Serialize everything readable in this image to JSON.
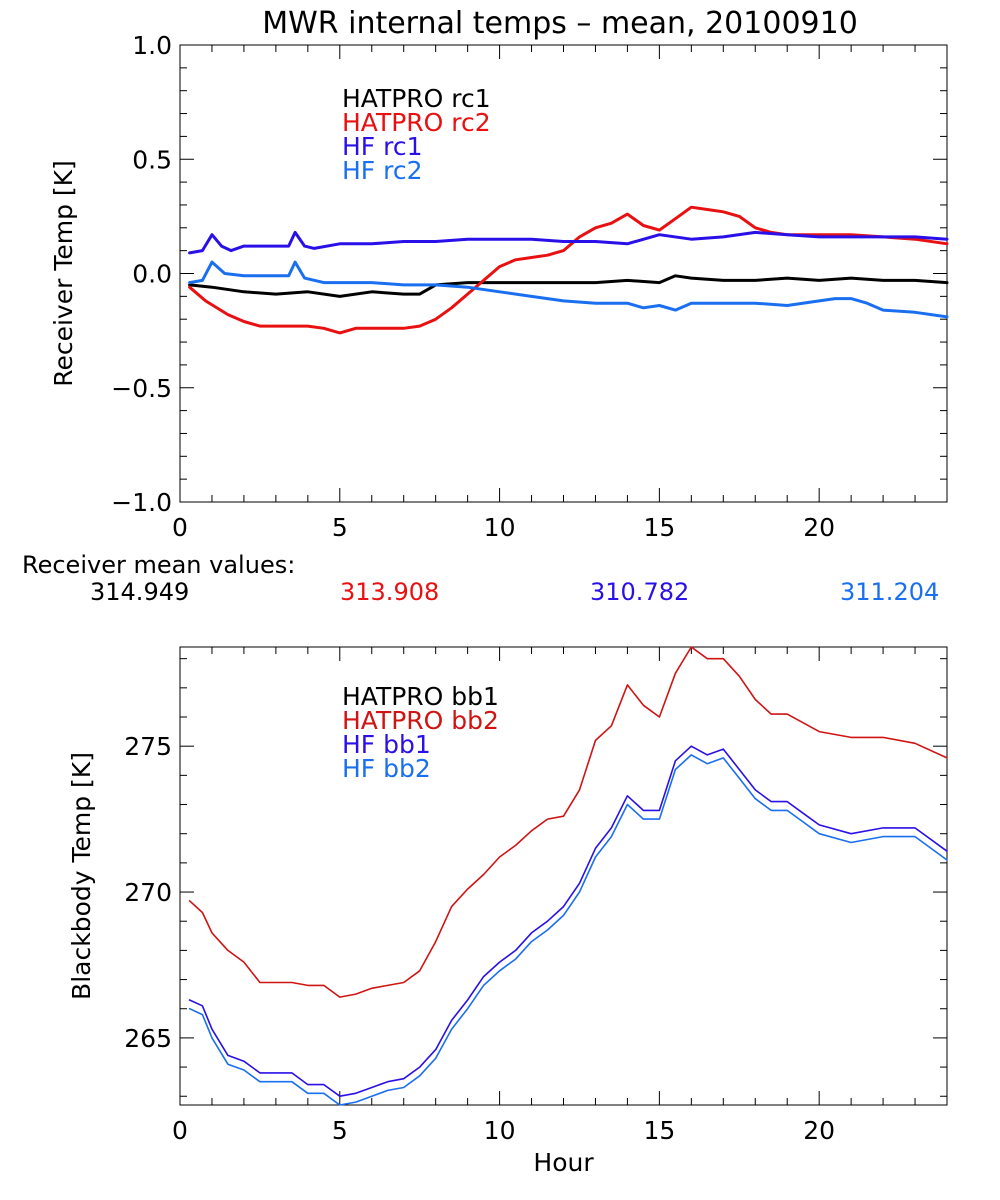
{
  "title": "MWR internal temps – mean, 20100910",
  "colors": {
    "black": "#000000",
    "red": "#e81010",
    "darkred": "#d01414",
    "blue": "#2a10e8",
    "lightblue": "#1a6ff0"
  },
  "receiver_means": {
    "label": "Receiver mean values:",
    "values": [
      {
        "text": "314.949",
        "color": "#000000"
      },
      {
        "text": "313.908",
        "color": "#e81010"
      },
      {
        "text": "310.782",
        "color": "#2a10e8"
      },
      {
        "text": "311.204",
        "color": "#1a6ff0"
      }
    ]
  },
  "chart_data": [
    {
      "type": "line",
      "title": "MWR internal temps – mean, 20100910",
      "xlabel": "",
      "ylabel": "Receiver Temp [K]",
      "xlim": [
        0,
        24
      ],
      "ylim": [
        -1.0,
        1.0
      ],
      "x_ticks": [
        0,
        5,
        10,
        15,
        20
      ],
      "y_ticks": [
        -1.0,
        -0.5,
        0.0,
        0.5,
        1.0
      ],
      "y_tick_labels": [
        "−1.0",
        "−0.5",
        "0.0",
        "0.5",
        "1.0"
      ],
      "grid": false,
      "legend_position": "top-left",
      "series": [
        {
          "name": "HATPRO rc1",
          "color": "#000000",
          "x": [
            0.3,
            1.0,
            2.0,
            3.0,
            4.0,
            5.0,
            6.0,
            7.0,
            7.5,
            8.0,
            9.0,
            10.0,
            11.0,
            12.0,
            13.0,
            14.0,
            15.0,
            15.5,
            16.0,
            17.0,
            18.0,
            19.0,
            20.0,
            21.0,
            22.0,
            23.0,
            24.0
          ],
          "y": [
            -0.05,
            -0.06,
            -0.08,
            -0.09,
            -0.08,
            -0.1,
            -0.08,
            -0.09,
            -0.09,
            -0.05,
            -0.04,
            -0.04,
            -0.04,
            -0.04,
            -0.04,
            -0.03,
            -0.04,
            -0.01,
            -0.02,
            -0.03,
            -0.03,
            -0.02,
            -0.03,
            -0.02,
            -0.03,
            -0.03,
            -0.04
          ]
        },
        {
          "name": "HATPRO rc2",
          "color": "#e81010",
          "x": [
            0.3,
            0.8,
            1.5,
            2.0,
            2.5,
            3.0,
            4.0,
            4.5,
            5.0,
            5.5,
            6.0,
            7.0,
            7.5,
            8.0,
            8.5,
            9.0,
            9.5,
            10.0,
            10.5,
            11.0,
            11.5,
            12.0,
            12.5,
            13.0,
            13.5,
            14.0,
            14.5,
            15.0,
            15.5,
            16.0,
            16.5,
            17.0,
            17.5,
            18.0,
            18.5,
            19.0,
            20.0,
            21.0,
            22.0,
            23.0,
            24.0
          ],
          "y": [
            -0.06,
            -0.12,
            -0.18,
            -0.21,
            -0.23,
            -0.23,
            -0.23,
            -0.24,
            -0.26,
            -0.24,
            -0.24,
            -0.24,
            -0.23,
            -0.2,
            -0.15,
            -0.09,
            -0.03,
            0.03,
            0.06,
            0.07,
            0.08,
            0.1,
            0.16,
            0.2,
            0.22,
            0.26,
            0.21,
            0.19,
            0.24,
            0.29,
            0.28,
            0.27,
            0.25,
            0.2,
            0.18,
            0.17,
            0.17,
            0.17,
            0.16,
            0.15,
            0.13
          ]
        },
        {
          "name": "HF rc1",
          "color": "#2a10e8",
          "x": [
            0.3,
            0.7,
            1.0,
            1.3,
            1.6,
            2.0,
            3.0,
            3.4,
            3.6,
            3.9,
            4.2,
            5.0,
            6.0,
            7.0,
            8.0,
            9.0,
            10.0,
            11.0,
            12.0,
            13.0,
            14.0,
            15.0,
            16.0,
            17.0,
            18.0,
            19.0,
            20.0,
            21.0,
            22.0,
            23.0,
            24.0
          ],
          "y": [
            0.09,
            0.1,
            0.17,
            0.12,
            0.1,
            0.12,
            0.12,
            0.12,
            0.18,
            0.12,
            0.11,
            0.13,
            0.13,
            0.14,
            0.14,
            0.15,
            0.15,
            0.15,
            0.14,
            0.14,
            0.13,
            0.17,
            0.15,
            0.16,
            0.18,
            0.17,
            0.16,
            0.16,
            0.16,
            0.16,
            0.15
          ]
        },
        {
          "name": "HF rc2",
          "color": "#1a6ff0",
          "x": [
            0.3,
            0.7,
            1.0,
            1.4,
            2.0,
            3.0,
            3.4,
            3.6,
            3.9,
            4.5,
            5.0,
            6.0,
            7.0,
            8.0,
            9.0,
            10.0,
            11.0,
            12.0,
            13.0,
            14.0,
            14.5,
            15.0,
            15.5,
            16.0,
            17.0,
            18.0,
            19.0,
            20.0,
            20.5,
            21.0,
            21.5,
            22.0,
            23.0,
            24.0
          ],
          "y": [
            -0.04,
            -0.03,
            0.05,
            0.0,
            -0.01,
            -0.01,
            -0.01,
            0.05,
            -0.02,
            -0.04,
            -0.04,
            -0.04,
            -0.05,
            -0.05,
            -0.06,
            -0.08,
            -0.1,
            -0.12,
            -0.13,
            -0.13,
            -0.15,
            -0.14,
            -0.16,
            -0.13,
            -0.13,
            -0.13,
            -0.14,
            -0.12,
            -0.11,
            -0.11,
            -0.13,
            -0.16,
            -0.17,
            -0.19
          ]
        }
      ]
    },
    {
      "type": "line",
      "title": "",
      "xlabel": "Hour",
      "ylabel": "Blackbody Temp [K]",
      "xlim": [
        0,
        24
      ],
      "ylim": [
        262.7,
        278.4
      ],
      "x_ticks": [
        0,
        5,
        10,
        15,
        20
      ],
      "y_ticks": [
        265,
        270,
        275
      ],
      "grid": false,
      "legend_position": "top-left",
      "series": [
        {
          "name": "HATPRO bb1",
          "color": "#000000",
          "x": [],
          "y": []
        },
        {
          "name": "HATPRO bb2",
          "color": "#d01414",
          "x": [
            0.3,
            0.7,
            1.0,
            1.5,
            2.0,
            2.5,
            3.0,
            3.5,
            4.0,
            4.5,
            5.0,
            5.5,
            6.0,
            6.5,
            7.0,
            7.5,
            8.0,
            8.5,
            9.0,
            9.5,
            10.0,
            10.5,
            11.0,
            11.5,
            12.0,
            12.5,
            13.0,
            13.5,
            14.0,
            14.5,
            15.0,
            15.5,
            16.0,
            16.5,
            17.0,
            17.5,
            18.0,
            18.5,
            19.0,
            19.5,
            20.0,
            21.0,
            22.0,
            23.0,
            24.0
          ],
          "y": [
            269.7,
            269.3,
            268.6,
            268.0,
            267.6,
            266.9,
            266.9,
            266.9,
            266.8,
            266.8,
            266.4,
            266.5,
            266.7,
            266.8,
            266.9,
            267.3,
            268.3,
            269.5,
            270.1,
            270.6,
            271.2,
            271.6,
            272.1,
            272.5,
            272.6,
            273.5,
            275.2,
            275.7,
            277.1,
            276.4,
            276.0,
            277.5,
            278.4,
            278.0,
            278.0,
            277.4,
            276.6,
            276.1,
            276.1,
            275.8,
            275.5,
            275.3,
            275.3,
            275.1,
            274.6
          ]
        },
        {
          "name": "HF bb1",
          "color": "#2a10e8",
          "x": [
            0.3,
            0.7,
            1.0,
            1.5,
            2.0,
            2.5,
            3.0,
            3.5,
            4.0,
            4.5,
            5.0,
            5.5,
            6.0,
            6.5,
            7.0,
            7.5,
            8.0,
            8.5,
            9.0,
            9.5,
            10.0,
            10.5,
            11.0,
            11.5,
            12.0,
            12.5,
            13.0,
            13.5,
            14.0,
            14.5,
            15.0,
            15.5,
            16.0,
            16.5,
            17.0,
            17.5,
            18.0,
            18.5,
            19.0,
            19.5,
            20.0,
            21.0,
            22.0,
            23.0,
            24.0
          ],
          "y": [
            266.3,
            266.1,
            265.3,
            264.4,
            264.2,
            263.8,
            263.8,
            263.8,
            263.4,
            263.4,
            263.0,
            263.1,
            263.3,
            263.5,
            263.6,
            264.0,
            264.6,
            265.6,
            266.3,
            267.1,
            267.6,
            268.0,
            268.6,
            269.0,
            269.5,
            270.3,
            271.5,
            272.2,
            273.3,
            272.8,
            272.8,
            274.5,
            275.0,
            274.7,
            274.9,
            274.2,
            273.5,
            273.1,
            273.1,
            272.7,
            272.3,
            272.0,
            272.2,
            272.2,
            271.4
          ]
        },
        {
          "name": "HF bb2",
          "color": "#1a6ff0",
          "x": [
            0.3,
            0.7,
            1.0,
            1.5,
            2.0,
            2.5,
            3.0,
            3.5,
            4.0,
            4.5,
            5.0,
            5.5,
            6.0,
            6.5,
            7.0,
            7.5,
            8.0,
            8.5,
            9.0,
            9.5,
            10.0,
            10.5,
            11.0,
            11.5,
            12.0,
            12.5,
            13.0,
            13.5,
            14.0,
            14.5,
            15.0,
            15.5,
            16.0,
            16.5,
            17.0,
            17.5,
            18.0,
            18.5,
            19.0,
            19.5,
            20.0,
            21.0,
            22.0,
            23.0,
            24.0
          ],
          "y": [
            266.0,
            265.8,
            265.0,
            264.1,
            263.9,
            263.5,
            263.5,
            263.5,
            263.1,
            263.1,
            262.7,
            262.8,
            263.0,
            263.2,
            263.3,
            263.7,
            264.3,
            265.3,
            266.0,
            266.8,
            267.3,
            267.7,
            268.3,
            268.7,
            269.2,
            270.0,
            271.2,
            271.9,
            273.0,
            272.5,
            272.5,
            274.2,
            274.7,
            274.4,
            274.6,
            273.9,
            273.2,
            272.8,
            272.8,
            272.4,
            272.0,
            271.7,
            271.9,
            271.9,
            271.1
          ]
        }
      ]
    }
  ]
}
